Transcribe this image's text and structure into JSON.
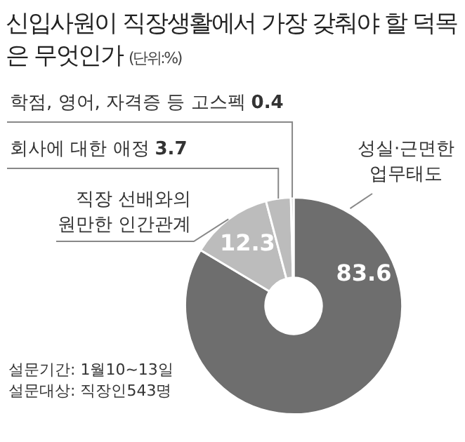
{
  "chart_data": {
    "type": "donut",
    "title": "신입사원이 직장생활에서 가장 갖춰야 할 덕목은 무엇인가",
    "subtitle": "(단위:%)",
    "categories": [
      "성실·근면한 업무태도",
      "직장 선배와의 원만한 인간관계",
      "회사에 대한 애정",
      "학점, 영어, 자격증 등 고스펙"
    ],
    "values": [
      83.6,
      12.3,
      3.7,
      0.4
    ],
    "colors": [
      "#6e6e6e",
      "#bcbcbc",
      "#bcbcbc",
      "#c6c6c6"
    ],
    "data_labels": true,
    "annotations": [
      "설문기간: 1월10~13일",
      "설문대상: 직장인543명"
    ]
  }
}
